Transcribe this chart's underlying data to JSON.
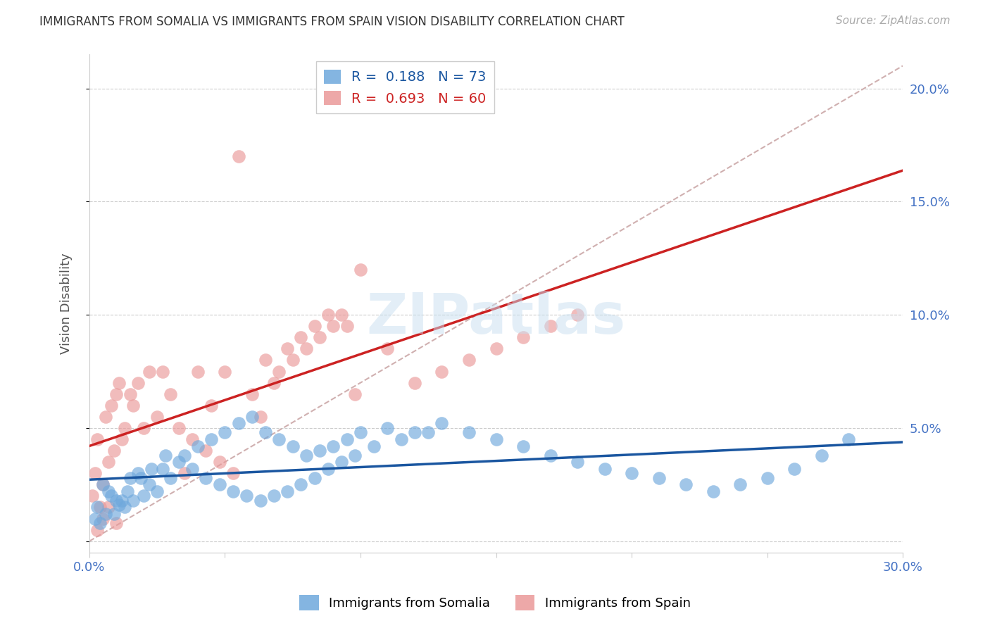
{
  "title": "IMMIGRANTS FROM SOMALIA VS IMMIGRANTS FROM SPAIN VISION DISABILITY CORRELATION CHART",
  "source": "Source: ZipAtlas.com",
  "ylabel": "Vision Disability",
  "xlim": [
    0.0,
    0.3
  ],
  "ylim": [
    -0.005,
    0.215
  ],
  "xticks": [
    0.0,
    0.05,
    0.1,
    0.15,
    0.2,
    0.25,
    0.3
  ],
  "xticklabels": [
    "0.0%",
    "",
    "",
    "",
    "",
    "",
    "30.0%"
  ],
  "yticks": [
    0.0,
    0.05,
    0.1,
    0.15,
    0.2
  ],
  "yticklabels": [
    "",
    "5.0%",
    "10.0%",
    "15.0%",
    "20.0%"
  ],
  "somalia_color": "#6fa8dc",
  "spain_color": "#ea9999",
  "somalia_line_color": "#1a56a0",
  "spain_line_color": "#cc2222",
  "dash_line_color": "#d0b0b0",
  "somalia_R": 0.188,
  "somalia_N": 73,
  "spain_R": 0.693,
  "spain_N": 60,
  "somalia_scatter_x": [
    0.002,
    0.003,
    0.004,
    0.005,
    0.006,
    0.007,
    0.008,
    0.009,
    0.01,
    0.011,
    0.012,
    0.013,
    0.014,
    0.015,
    0.016,
    0.018,
    0.019,
    0.02,
    0.022,
    0.023,
    0.025,
    0.027,
    0.028,
    0.03,
    0.033,
    0.035,
    0.038,
    0.04,
    0.043,
    0.045,
    0.048,
    0.05,
    0.053,
    0.055,
    0.058,
    0.06,
    0.063,
    0.065,
    0.068,
    0.07,
    0.073,
    0.075,
    0.078,
    0.08,
    0.083,
    0.085,
    0.088,
    0.09,
    0.093,
    0.095,
    0.098,
    0.1,
    0.105,
    0.11,
    0.115,
    0.12,
    0.125,
    0.13,
    0.14,
    0.15,
    0.16,
    0.17,
    0.18,
    0.19,
    0.2,
    0.21,
    0.22,
    0.23,
    0.24,
    0.25,
    0.26,
    0.27,
    0.28
  ],
  "somalia_scatter_y": [
    0.01,
    0.015,
    0.008,
    0.025,
    0.012,
    0.022,
    0.02,
    0.012,
    0.018,
    0.016,
    0.018,
    0.015,
    0.022,
    0.028,
    0.018,
    0.03,
    0.028,
    0.02,
    0.025,
    0.032,
    0.022,
    0.032,
    0.038,
    0.028,
    0.035,
    0.038,
    0.032,
    0.042,
    0.028,
    0.045,
    0.025,
    0.048,
    0.022,
    0.052,
    0.02,
    0.055,
    0.018,
    0.048,
    0.02,
    0.045,
    0.022,
    0.042,
    0.025,
    0.038,
    0.028,
    0.04,
    0.032,
    0.042,
    0.035,
    0.045,
    0.038,
    0.048,
    0.042,
    0.05,
    0.045,
    0.048,
    0.048,
    0.052,
    0.048,
    0.045,
    0.042,
    0.038,
    0.035,
    0.032,
    0.03,
    0.028,
    0.025,
    0.022,
    0.025,
    0.028,
    0.032,
    0.038,
    0.045
  ],
  "spain_scatter_x": [
    0.001,
    0.002,
    0.003,
    0.004,
    0.005,
    0.006,
    0.007,
    0.008,
    0.009,
    0.01,
    0.011,
    0.012,
    0.013,
    0.015,
    0.016,
    0.018,
    0.02,
    0.022,
    0.025,
    0.027,
    0.03,
    0.033,
    0.035,
    0.038,
    0.04,
    0.043,
    0.045,
    0.048,
    0.05,
    0.053,
    0.055,
    0.06,
    0.063,
    0.065,
    0.068,
    0.07,
    0.073,
    0.075,
    0.078,
    0.08,
    0.083,
    0.085,
    0.088,
    0.09,
    0.093,
    0.095,
    0.098,
    0.1,
    0.11,
    0.12,
    0.13,
    0.14,
    0.15,
    0.16,
    0.17,
    0.18,
    0.003,
    0.005,
    0.007,
    0.01
  ],
  "spain_scatter_y": [
    0.02,
    0.03,
    0.045,
    0.015,
    0.025,
    0.055,
    0.035,
    0.06,
    0.04,
    0.065,
    0.07,
    0.045,
    0.05,
    0.065,
    0.06,
    0.07,
    0.05,
    0.075,
    0.055,
    0.075,
    0.065,
    0.05,
    0.03,
    0.045,
    0.075,
    0.04,
    0.06,
    0.035,
    0.075,
    0.03,
    0.17,
    0.065,
    0.055,
    0.08,
    0.07,
    0.075,
    0.085,
    0.08,
    0.09,
    0.085,
    0.095,
    0.09,
    0.1,
    0.095,
    0.1,
    0.095,
    0.065,
    0.12,
    0.085,
    0.07,
    0.075,
    0.08,
    0.085,
    0.09,
    0.095,
    0.1,
    0.005,
    0.01,
    0.015,
    0.008
  ],
  "watermark": "ZIPatlas",
  "background_color": "#ffffff",
  "grid_color": "#cccccc",
  "title_color": "#333333",
  "tick_color": "#4472c4"
}
